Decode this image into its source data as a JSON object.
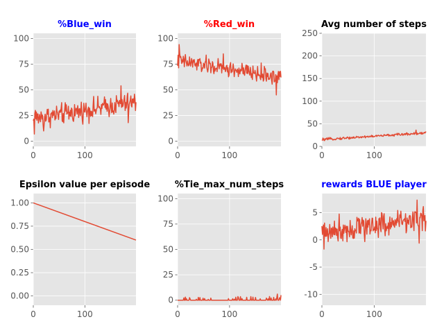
{
  "colors": {
    "line": "#e24a33",
    "panel_bg": "#e5e5e5",
    "grid": "#ffffff",
    "tick_text": "#555555"
  },
  "chart_data": [
    {
      "type": "line",
      "title": "%Blue_win",
      "title_color": "#0000ff",
      "xlim": [
        0,
        199
      ],
      "ylim": [
        -5,
        105
      ],
      "xticks": [
        0,
        100
      ],
      "yticks": [
        0,
        25,
        50,
        75,
        100
      ],
      "grid": true,
      "series": [
        {
          "x_start": 0,
          "x_end": 199,
          "trend_start": 22,
          "trend_end": 38,
          "noise": 11,
          "anchors": [
            [
              0,
              20
            ],
            [
              2,
              7
            ],
            [
              4,
              30
            ],
            [
              20,
              10
            ],
            [
              56,
              20
            ],
            [
              170,
              54
            ],
            [
              184,
              18
            ],
            [
              199,
              38
            ]
          ]
        }
      ]
    },
    {
      "type": "line",
      "title": "%Red_win",
      "title_color": "#ff0000",
      "xlim": [
        0,
        199
      ],
      "ylim": [
        -5,
        105
      ],
      "xticks": [
        0,
        100
      ],
      "yticks": [
        0,
        25,
        50,
        75,
        100
      ],
      "grid": true,
      "series": [
        {
          "x_start": 0,
          "x_end": 199,
          "trend_start": 78,
          "trend_end": 62,
          "noise": 9,
          "anchors": [
            [
              3,
              94
            ],
            [
              88,
              85
            ],
            [
              190,
              45
            ],
            [
              195,
              60
            ],
            [
              199,
              62
            ]
          ]
        }
      ]
    },
    {
      "type": "line",
      "title": "Avg number of steps",
      "title_color": "#000000",
      "xlim": [
        0,
        199
      ],
      "ylim": [
        0,
        250
      ],
      "xticks": [
        0,
        100
      ],
      "yticks": [
        0,
        50,
        100,
        150,
        200,
        250
      ],
      "grid": true,
      "series": [
        {
          "x_start": 0,
          "x_end": 199,
          "trend_start": 15,
          "trend_end": 30,
          "noise": 3,
          "anchors": [
            [
              0,
              13
            ],
            [
              180,
              36
            ],
            [
              199,
              33
            ]
          ]
        }
      ]
    },
    {
      "type": "line",
      "title": "Epsilon value per episode",
      "title_color": "#000000",
      "xlim": [
        0,
        199
      ],
      "ylim": [
        -0.1,
        1.1
      ],
      "xticks": [
        0,
        100
      ],
      "yticks": [
        0.0,
        0.25,
        0.5,
        0.75,
        1.0
      ],
      "ytick_labels": [
        "0.00",
        "0.25",
        "0.50",
        "0.75",
        "1.00"
      ],
      "grid": true,
      "series": [
        {
          "x": [
            0,
            199
          ],
          "y": [
            1.0,
            0.6
          ]
        }
      ]
    },
    {
      "type": "line",
      "title": "%Tie_max_num_steps",
      "title_color": "#000000",
      "xlim": [
        0,
        199
      ],
      "ylim": [
        -5,
        105
      ],
      "xticks": [
        0,
        100
      ],
      "yticks": [
        0,
        25,
        50,
        75,
        100
      ],
      "grid": true,
      "series": [
        {
          "x_start": 0,
          "x_end": 199,
          "trend_start": 0,
          "trend_end": 1,
          "noise": 0,
          "spike_prob": 0.18,
          "spike_max": 3,
          "anchors": [
            [
              192,
              6
            ],
            [
              199,
              5
            ]
          ]
        }
      ]
    },
    {
      "type": "line",
      "title": "rewards BLUE player",
      "title_color": "#0000ff",
      "xlim": [
        0,
        199
      ],
      "ylim": [
        -12,
        8.5
      ],
      "xticks": [
        0,
        100
      ],
      "yticks": [
        -10,
        -5,
        0,
        5
      ],
      "grid": true,
      "series": [
        {
          "x_start": 0,
          "x_end": 199,
          "trend_start": 1.5,
          "trend_end": 4,
          "noise": 2.6,
          "anchors": [
            [
              4,
              -1.7
            ],
            [
              182,
              7.3
            ],
            [
              186,
              -0.6
            ],
            [
              199,
              3.5
            ]
          ]
        }
      ]
    }
  ]
}
